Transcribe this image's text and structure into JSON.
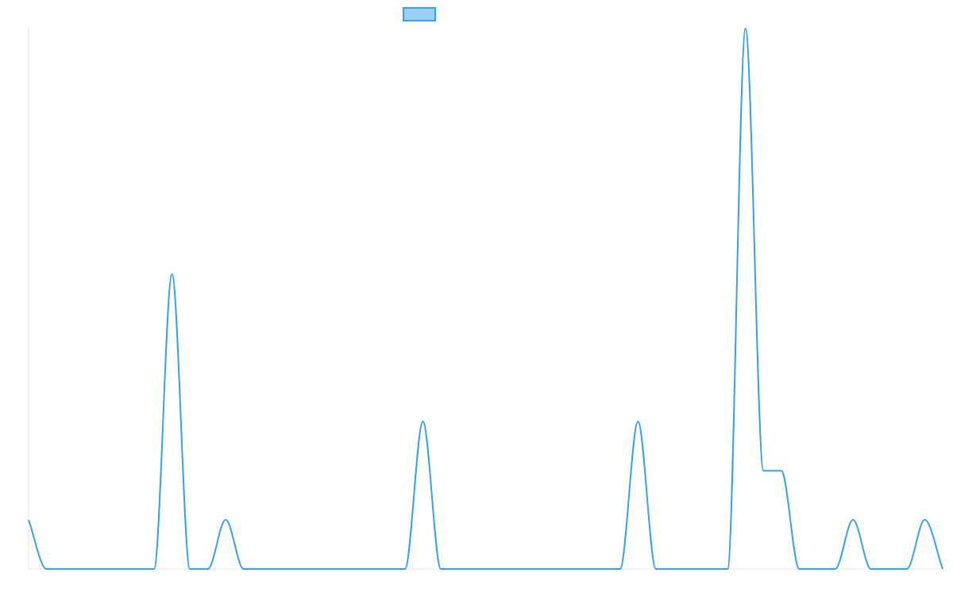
{
  "chart_data": {
    "type": "line",
    "title": "",
    "xlabel": "",
    "ylabel": "",
    "legend": {
      "position": "top-center",
      "entries": [
        {
          "label": "",
          "color": "#36A2EB",
          "fill": "#9AD0F5"
        }
      ]
    },
    "grid": false,
    "x": [
      0,
      1,
      2,
      3,
      4,
      5,
      6,
      7,
      8,
      9,
      10,
      11,
      12,
      13,
      14,
      15,
      16,
      17,
      18,
      19,
      20,
      21,
      22,
      23,
      24,
      25,
      26,
      27,
      28,
      29,
      30,
      31,
      32,
      33,
      34,
      35,
      36,
      37,
      38,
      39,
      40,
      41,
      42,
      43,
      44,
      45,
      46,
      47,
      48,
      49,
      50,
      51
    ],
    "xlim": [
      0,
      51
    ],
    "ylim": [
      0,
      11
    ],
    "series": [
      {
        "name": "",
        "color": "#36A2EB",
        "values": [
          1,
          0,
          0,
          0,
          0,
          0,
          0,
          0,
          6,
          0,
          0,
          1,
          0,
          0,
          0,
          0,
          0,
          0,
          0,
          0,
          0,
          0,
          3,
          0,
          0,
          0,
          0,
          0,
          0,
          0,
          0,
          0,
          0,
          0,
          3,
          0,
          0,
          0,
          0,
          0,
          11,
          2,
          2,
          0,
          0,
          0,
          1,
          0,
          0,
          0,
          1,
          0
        ]
      }
    ]
  }
}
